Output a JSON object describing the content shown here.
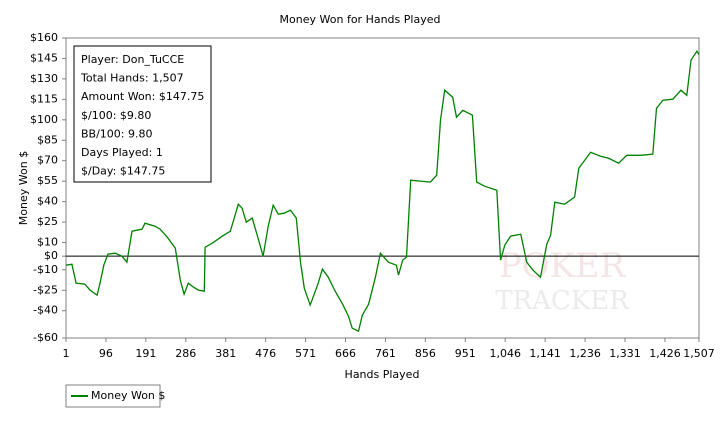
{
  "chart_data": {
    "type": "line",
    "title": "Money Won for Hands Played",
    "x_label": "Hands Played",
    "y_label": "Money Won $",
    "xlim": [
      1,
      1507
    ],
    "ylim": [
      -60,
      160
    ],
    "xticks": [
      1,
      96,
      191,
      286,
      381,
      476,
      571,
      666,
      761,
      856,
      951,
      {
        "value": 1046,
        "label": "1,046"
      },
      {
        "value": 1141,
        "label": "1,141"
      },
      {
        "value": 1236,
        "label": "1,236"
      },
      {
        "value": 1331,
        "label": "1,331"
      },
      {
        "value": 1426,
        "label": "1,426"
      },
      {
        "value": 1507,
        "label": "1,507"
      }
    ],
    "yticks": [
      {
        "value": -60,
        "label": "-$60"
      },
      {
        "value": -40,
        "label": "-$40"
      },
      {
        "value": -25,
        "label": "-$25"
      },
      {
        "value": -10,
        "label": "-$10"
      },
      {
        "value": 0,
        "label": "$0"
      },
      {
        "value": 10,
        "label": "$10"
      },
      {
        "value": 25,
        "label": "$25"
      },
      {
        "value": 40,
        "label": "$40"
      },
      {
        "value": 55,
        "label": "$55"
      },
      {
        "value": 70,
        "label": "$70"
      },
      {
        "value": 85,
        "label": "$85"
      },
      {
        "value": 100,
        "label": "$100"
      },
      {
        "value": 115,
        "label": "$115"
      },
      {
        "value": 130,
        "label": "$130"
      },
      {
        "value": 145,
        "label": "$145"
      },
      {
        "value": 160,
        "label": "$160"
      }
    ],
    "grid": false,
    "zero_line": true,
    "stats_box": [
      "Player: Don_TuCCE",
      "Total Hands: 1,507",
      "Amount Won: $147.75",
      "$/100: $9.80",
      "BB/100: 9.80",
      "Days Played: 1",
      "$/Day: $147.75"
    ],
    "watermark": [
      "POKER",
      "TRACKER"
    ],
    "x": [
      1,
      15,
      25,
      46,
      58,
      75,
      82,
      91,
      101,
      118,
      134,
      146,
      158,
      182,
      189,
      213,
      225,
      242,
      261,
      273,
      282,
      292,
      304,
      316,
      330,
      332,
      349,
      373,
      392,
      404,
      411,
      420,
      430,
      444,
      458,
      470,
      482,
      494,
      506,
      520,
      535,
      549,
      559,
      568,
      582,
      601,
      611,
      625,
      640,
      659,
      673,
      682,
      697,
      706,
      721,
      737,
      749,
      768,
      787,
      792,
      802,
      811,
      821,
      868,
      883,
      892,
      902,
      921,
      930,
      945,
      968,
      978,
      997,
      1026,
      1035,
      1045,
      1059,
      1083,
      1097,
      1112,
      1130,
      1145,
      1154,
      1164,
      1187,
      1211,
      1221,
      1249,
      1273,
      1292,
      1316,
      1335,
      1368,
      1397,
      1406,
      1421,
      1445,
      1464,
      1478,
      1488,
      1502,
      1507
    ],
    "series": [
      {
        "name": "Money Won $",
        "color": "#008000",
        "values": [
          -6.6,
          -5.9,
          -19.8,
          -20.5,
          -24.9,
          -28.6,
          -19.8,
          -6.6,
          1.5,
          2.2,
          0,
          -4.4,
          18.3,
          19.8,
          24.2,
          22,
          19.8,
          13.9,
          5.9,
          -17.6,
          -27.9,
          -19.8,
          -22.7,
          -24.9,
          -25.7,
          6.6,
          9.5,
          14.7,
          18.3,
          30.8,
          38.1,
          35.2,
          24.9,
          27.9,
          13.2,
          0,
          22,
          37.4,
          30.8,
          31.5,
          33.7,
          27.9,
          -4.4,
          -23.5,
          -35.9,
          -19.8,
          -9.5,
          -15.4,
          -24.9,
          -35.2,
          -44,
          -52.8,
          -55,
          -43.3,
          -35.2,
          -15.4,
          2.2,
          -4.4,
          -6.6,
          -13.9,
          -2.9,
          -0.7,
          55.7,
          54.3,
          59.4,
          99.7,
          121.7,
          116.6,
          101.9,
          107,
          103.4,
          54.3,
          51.3,
          48.4,
          -2.9,
          8.1,
          14.7,
          16.1,
          -4.4,
          -10.3,
          -15.4,
          8.8,
          15.4,
          39.6,
          38.1,
          43.3,
          64.5,
          76.2,
          73.3,
          71.8,
          68.2,
          74,
          74,
          74.8,
          108.5,
          114.4,
          115.1,
          121.7,
          118,
          143.7,
          150.3,
          147.75
        ]
      }
    ]
  }
}
